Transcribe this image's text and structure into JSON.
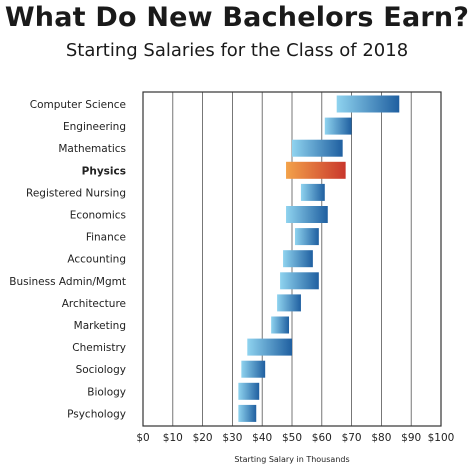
{
  "title": "What Do New Bachelors Earn?",
  "subtitle": "Starting Salaries for the Class of 2018",
  "chart_data": {
    "type": "bar",
    "orientation": "horizontal",
    "subtype": "floating-range",
    "categories": [
      "Computer Science",
      "Engineering",
      "Mathematics",
      "Physics",
      "Registered Nursing",
      "Economics",
      "Finance",
      "Accounting",
      "Business Admin/Mgmt",
      "Architecture",
      "Marketing",
      "Chemistry",
      "Sociology",
      "Biology",
      "Psychology"
    ],
    "ranges": [
      [
        65,
        86
      ],
      [
        61,
        70
      ],
      [
        50,
        67
      ],
      [
        48,
        68
      ],
      [
        53,
        61
      ],
      [
        48,
        62
      ],
      [
        51,
        59
      ],
      [
        47,
        57
      ],
      [
        46,
        59
      ],
      [
        45,
        53
      ],
      [
        43,
        49
      ],
      [
        35,
        50
      ],
      [
        33,
        41
      ],
      [
        32,
        39
      ],
      [
        32,
        38
      ]
    ],
    "highlight": "Physics",
    "xlabel": "Starting Salary in Thousands",
    "ylabel": "",
    "xlim": [
      0,
      100
    ],
    "xticks": [
      0,
      10,
      20,
      30,
      40,
      50,
      60,
      70,
      80,
      90,
      100
    ],
    "xtick_labels": [
      "$0",
      "$10",
      "$20",
      "$30",
      "$40",
      "$50",
      "$60",
      "$70",
      "$80",
      "$90",
      "$100"
    ],
    "grid": "vertical",
    "legend": "none",
    "colors": {
      "bar_light": "#8fd3ef",
      "bar_dark": "#1f5fa0",
      "highlight_light": "#f3a24a",
      "highlight_dark": "#c9372c",
      "highlight_label": "#c62d2d",
      "grid": "#555555",
      "frame": "#333333",
      "text": "#222222"
    }
  }
}
